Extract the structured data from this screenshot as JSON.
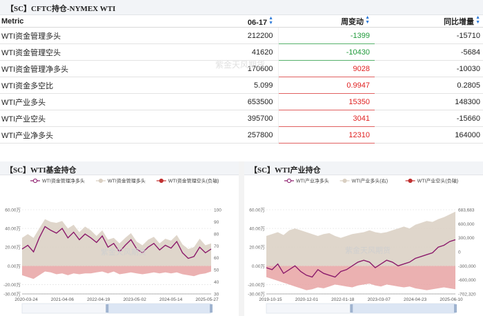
{
  "header": {
    "title": "【SC】CFTC持仓-NYMEX WTI"
  },
  "table": {
    "columns": [
      "Metric",
      "06-17",
      "周变动",
      "同比增量"
    ],
    "sort_icon": "sort-arrows-icon",
    "rows": [
      {
        "metric": "WTI资金管理多头",
        "value": "212200",
        "weekly": "-1399",
        "yoy": "-15710",
        "dir": "neg"
      },
      {
        "metric": "WTI资金管理空头",
        "value": "41620",
        "weekly": "-10430",
        "yoy": "-5684",
        "dir": "neg"
      },
      {
        "metric": "WTI资金管理净多头",
        "value": "170600",
        "weekly": "9028",
        "yoy": "-10030",
        "dir": "pos"
      },
      {
        "metric": "WTI资金多空比",
        "value": "5.099",
        "weekly": "0.9947",
        "yoy": "0.2805",
        "dir": "pos"
      },
      {
        "metric": "WTI产业多头",
        "value": "653500",
        "weekly": "15350",
        "yoy": "148300",
        "dir": "pos"
      },
      {
        "metric": "WTI产业空头",
        "value": "395700",
        "weekly": "3041",
        "yoy": "-15660",
        "dir": "pos"
      },
      {
        "metric": "WTI产业净多头",
        "value": "257800",
        "weekly": "12310",
        "yoy": "164000",
        "dir": "pos"
      }
    ]
  },
  "watermark": "紫金天风期货",
  "colors": {
    "net_line": "#8b1a6b",
    "long_area": "#d9cfc2",
    "short_area": "#e8a3a3",
    "positive": "#e02020",
    "negative": "#1f9a3a"
  },
  "chart_data": [
    {
      "type": "area",
      "title": "【SC】WTI基金持仓",
      "legend": [
        "WTI资金管理净多头",
        "WTI资金管理多头",
        "WTI资金管理空头(负轴)"
      ],
      "legend_placement": "top",
      "y_left_ticks": [
        "60.00万",
        "40.00万",
        "20.00万",
        "0.00万",
        "-20.00万",
        "-30.00万"
      ],
      "y_left_range": [
        -30,
        60
      ],
      "y_right_ticks": [
        "100",
        "90",
        "80",
        "70",
        "60",
        "50",
        "40",
        "30"
      ],
      "x_ticks": [
        "2020-03-24",
        "2021-04-06",
        "2022-04-19",
        "2023-05-02",
        "2024-05-14",
        "2025-05-27"
      ],
      "series": [
        {
          "name": "WTI资金管理净多头",
          "values": [
            18,
            22,
            15,
            30,
            42,
            38,
            35,
            40,
            30,
            36,
            28,
            34,
            30,
            25,
            32,
            20,
            24,
            15,
            22,
            28,
            18,
            14,
            20,
            24,
            17,
            22,
            19,
            26,
            14,
            8,
            10,
            20,
            14,
            18
          ]
        },
        {
          "name": "WTI资金管理多头",
          "values": [
            30,
            34,
            30,
            40,
            50,
            47,
            46,
            48,
            40,
            44,
            36,
            42,
            38,
            32,
            38,
            28,
            30,
            24,
            30,
            35,
            26,
            22,
            28,
            31,
            24,
            29,
            27,
            33,
            23,
            18,
            20,
            29,
            22,
            24
          ]
        },
        {
          "name": "WTI资金管理空头(负轴)",
          "values": [
            -10,
            -12,
            -14,
            -10,
            -6,
            -7,
            -9,
            -8,
            -10,
            -8,
            -9,
            -8,
            -8,
            -7,
            -6,
            -8,
            -6,
            -9,
            -8,
            -7,
            -8,
            -9,
            -8,
            -7,
            -8,
            -7,
            -8,
            -7,
            -9,
            -10,
            -11,
            -9,
            -8,
            -6
          ]
        }
      ]
    },
    {
      "type": "area",
      "title": "【SC】WTI产业持仓",
      "legend": [
        "WTI产业净多头",
        "WTI产业多头(右)",
        "WTI产业空头(负轴)"
      ],
      "legend_placement": "top",
      "y_left_ticks": [
        "60.00万",
        "40.00万",
        "20.00万",
        "0.00万",
        "-20.00万",
        "-30.00万"
      ],
      "y_left_range": [
        -30,
        60
      ],
      "y_right_ticks": [
        "683,683",
        "600,000",
        "300,000",
        "0",
        "-300,000",
        "-600,000",
        "-702,320"
      ],
      "x_ticks": [
        "2019-10-15",
        "2020-12-01",
        "2022-01-18",
        "2023-03-07",
        "2024-04-23",
        "2025-06-10"
      ],
      "series": [
        {
          "name": "WTI产业净多头",
          "values": [
            -2,
            -4,
            2,
            -8,
            -4,
            0,
            -6,
            -10,
            -12,
            -4,
            -8,
            -10,
            -12,
            -6,
            -4,
            0,
            4,
            6,
            4,
            -2,
            2,
            6,
            4,
            0,
            2,
            4,
            8,
            10,
            12,
            14,
            20,
            22,
            26,
            28
          ]
        },
        {
          "name": "WTI产业多头(右)",
          "values": [
            32,
            34,
            36,
            33,
            38,
            40,
            38,
            36,
            34,
            32,
            34,
            35,
            32,
            30,
            32,
            34,
            35,
            36,
            38,
            36,
            35,
            36,
            38,
            40,
            42,
            40,
            44,
            46,
            48,
            47,
            50,
            52,
            55,
            58
          ]
        },
        {
          "name": "WTI产业空头(负轴)",
          "values": [
            -12,
            -14,
            -16,
            -18,
            -20,
            -22,
            -24,
            -26,
            -25,
            -23,
            -24,
            -22,
            -20,
            -21,
            -22,
            -23,
            -21,
            -20,
            -19,
            -21,
            -22,
            -20,
            -21,
            -22,
            -23,
            -22,
            -24,
            -25,
            -26,
            -25,
            -24,
            -23,
            -24,
            -25
          ]
        }
      ]
    }
  ]
}
